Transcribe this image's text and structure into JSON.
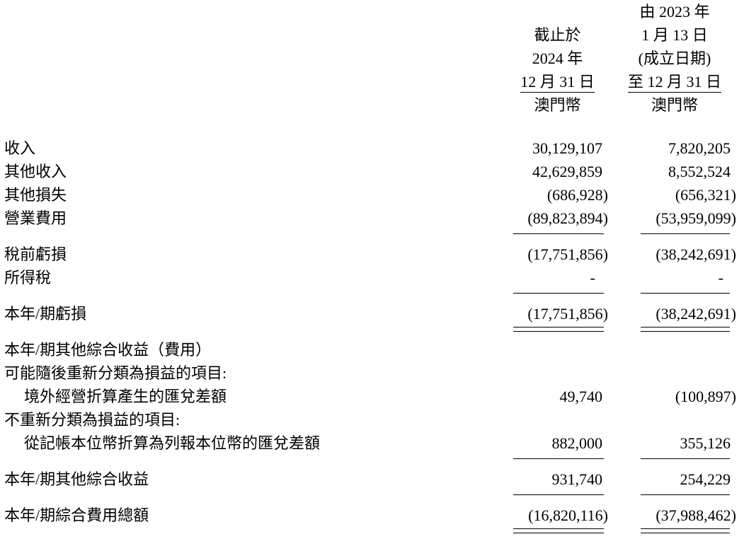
{
  "page": {
    "background_color": "#ffffff",
    "text_color": "#000000",
    "currency": "澳門幣"
  },
  "statement": {
    "header": {
      "col1": {
        "l1": "",
        "l2": "截止於",
        "l3": "2024 年",
        "l4": "12 月 31 日",
        "l5": "澳門幣"
      },
      "col2": {
        "l1": "由 2023 年",
        "l2": "1 月 13 日",
        "l3": "(成立日期)",
        "l4": "至 12 月 31 日",
        "l5": "澳門幣"
      }
    },
    "rows": [
      {
        "type": "item",
        "label": "收入",
        "v1": "30,129,107",
        "v2": "7,820,205"
      },
      {
        "type": "item",
        "label": "其他收入",
        "v1": "42,629,859",
        "v2": "8,552,524"
      },
      {
        "type": "item",
        "label": "其他損失",
        "v1": "(686,928)",
        "v2": "(656,321)"
      },
      {
        "type": "item",
        "label": "營業費用",
        "v1": "(89,823,894)",
        "v2": "(53,959,099)"
      },
      {
        "type": "rule"
      },
      {
        "type": "item",
        "label": "稅前虧損",
        "v1": "(17,751,856)",
        "v2": "(38,242,691)"
      },
      {
        "type": "item",
        "label": "所得稅",
        "v1": "-",
        "v2": "-"
      },
      {
        "type": "rule"
      },
      {
        "type": "item",
        "label": "本年/期虧損",
        "v1": "(17,751,856)",
        "v2": "(38,242,691)"
      },
      {
        "type": "dbl"
      },
      {
        "type": "item",
        "label": "本年/期其他綜合收益（費用）",
        "v1": "",
        "v2": ""
      },
      {
        "type": "item",
        "label": "可能隨後重新分類為損益的項目:",
        "v1": "",
        "v2": ""
      },
      {
        "type": "item",
        "indent": true,
        "label": "境外經營折算產生的匯兌差額",
        "v1": "49,740",
        "v2": "(100,897)"
      },
      {
        "type": "item",
        "label": "不重新分類為損益的項目:",
        "v1": "",
        "v2": ""
      },
      {
        "type": "item",
        "indent": true,
        "label": "從記帳本位幣折算為列報本位幣的匯兌差額",
        "v1": "882,000",
        "v2": "355,126"
      },
      {
        "type": "rule"
      },
      {
        "type": "item",
        "label": "本年/期其他綜合收益",
        "v1": "931,740",
        "v2": "254,229"
      },
      {
        "type": "rule"
      },
      {
        "type": "item",
        "label": "本年/期綜合費用總額",
        "v1": "(16,820,116)",
        "v2": "(37,988,462)"
      },
      {
        "type": "dbl"
      }
    ]
  }
}
